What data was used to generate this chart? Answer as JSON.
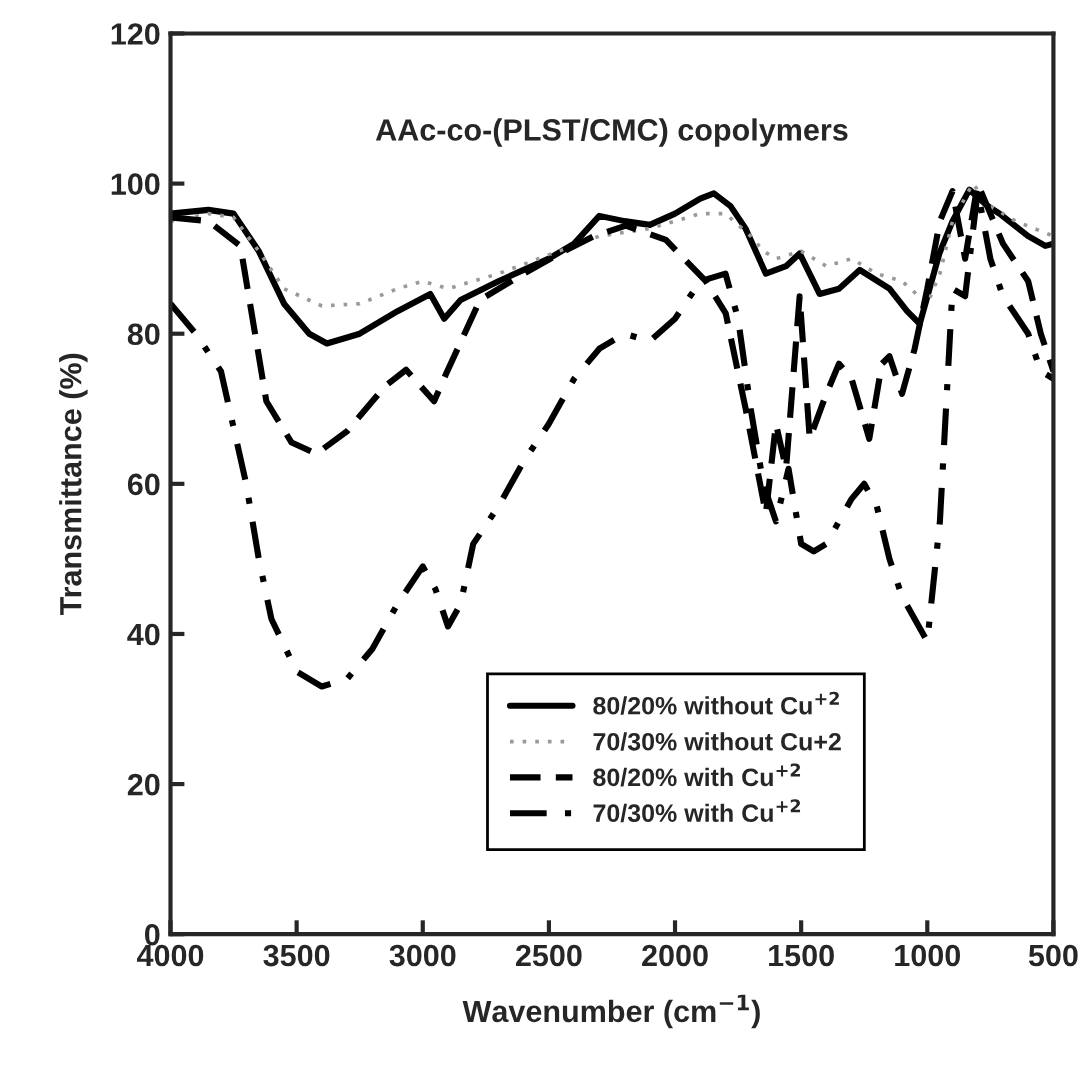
{
  "chart_data": {
    "type": "line",
    "xlabel": "Wavenumber (cm$^{−1}$)",
    "ylabel": "Transmittance (%)",
    "annotations": [
      "AAc-co-(PLST/CMC) copolymers"
    ],
    "xlim": [
      4000,
      500
    ],
    "xticks": [
      4000,
      3500,
      3000,
      2500,
      2000,
      1500,
      1000,
      500
    ],
    "ylim": [
      0,
      120
    ],
    "yticks": [
      0,
      20,
      40,
      60,
      80,
      100,
      120
    ],
    "grid": false,
    "legend": "bottom right",
    "series": [
      {
        "name": "80/20% without Cu$^{+2}$",
        "color": "#000000",
        "line_style": "solid",
        "x": [
          4000,
          3850,
          3750,
          3650,
          3550,
          3450,
          3380,
          3250,
          3100,
          2970,
          2915,
          2850,
          2700,
          2500,
          2400,
          2300,
          2200,
          2100,
          2000,
          1900,
          1846,
          1780,
          1720,
          1640,
          1560,
          1506,
          1427,
          1350,
          1268,
          1150,
          1080,
          1030,
          952,
          900,
          833,
          760,
          714,
          600,
          532,
          500
        ],
        "values": [
          96,
          96.5,
          96,
          91,
          84,
          80,
          78.7,
          80,
          83,
          85.3,
          82,
          84.5,
          87,
          90,
          92,
          95.7,
          95,
          94.5,
          96,
          98,
          98.7,
          97,
          94,
          88,
          89,
          90.7,
          85.3,
          86,
          88.5,
          86,
          83,
          81.3,
          90.7,
          95,
          99.2,
          97,
          96,
          93,
          91.7,
          92
        ]
      },
      {
        "name": "70/30% without Cu+2",
        "color": "#999999",
        "line_style": "dotted",
        "x": [
          4000,
          3850,
          3750,
          3650,
          3550,
          3400,
          3250,
          3100,
          3000,
          2900,
          2700,
          2500,
          2300,
          2100,
          2000,
          1900,
          1800,
          1700,
          1650,
          1600,
          1500,
          1400,
          1300,
          1200,
          1100,
          1000,
          950,
          900,
          820,
          750,
          650,
          500
        ],
        "values": [
          95,
          96,
          95.5,
          91,
          86,
          83.7,
          84,
          86,
          87,
          86,
          88,
          90.5,
          93,
          94,
          95,
          96,
          96,
          93,
          91,
          90,
          91,
          89,
          90,
          88,
          87,
          84,
          88,
          95,
          100,
          97,
          95,
          93
        ]
      },
      {
        "name": "80/20% with Cu$^{+2}$",
        "color": "#000000",
        "line_style": "dashed",
        "x": [
          4000,
          3850,
          3723,
          3620,
          3520,
          3422,
          3300,
          3150,
          3066,
          2955,
          2907,
          2773,
          2600,
          2456,
          2321,
          2195,
          2036,
          1878,
          1799,
          1720,
          1640,
          1600,
          1560,
          1506,
          1466,
          1400,
          1350,
          1300,
          1230,
          1180,
          1150,
          1100,
          1050,
          1000,
          950,
          900,
          850,
          800,
          750,
          700,
          600,
          550,
          500
        ],
        "values": [
          95.5,
          95,
          91.7,
          71,
          65.5,
          64,
          67,
          73,
          75.2,
          71,
          74.7,
          84.5,
          88,
          90.7,
          93,
          94.4,
          92.5,
          87,
          82.7,
          70,
          56,
          68,
          62,
          85,
          66,
          72,
          76,
          74,
          66,
          76,
          77,
          72,
          78,
          86,
          95,
          99,
          90,
          100,
          96,
          92,
          87,
          80,
          75
        ]
      },
      {
        "name": "70/30% with Cu$^{+2}$",
        "color": "#000000",
        "line_style": "dashdot",
        "x": [
          4000,
          3900,
          3800,
          3700,
          3650,
          3600,
          3500,
          3400,
          3300,
          3200,
          3100,
          3000,
          2950,
          2900,
          2850,
          2800,
          2700,
          2600,
          2500,
          2400,
          2300,
          2200,
          2100,
          2000,
          1900,
          1800,
          1750,
          1700,
          1650,
          1600,
          1550,
          1500,
          1450,
          1400,
          1300,
          1250,
          1200,
          1150,
          1100,
          1050,
          1000,
          950,
          900,
          850,
          800,
          750,
          700,
          600,
          550,
          500
        ],
        "values": [
          84,
          80,
          75,
          60,
          50,
          42,
          35,
          33,
          34,
          38,
          44,
          49,
          46,
          41,
          44,
          52,
          57,
          63,
          68,
          74,
          78,
          80,
          79,
          82,
          87,
          88,
          82,
          70,
          60,
          55,
          62,
          52,
          51,
          52,
          58,
          60,
          57,
          50,
          45,
          42,
          39,
          55,
          86,
          85,
          99,
          90,
          85,
          80,
          75,
          74
        ]
      }
    ]
  }
}
